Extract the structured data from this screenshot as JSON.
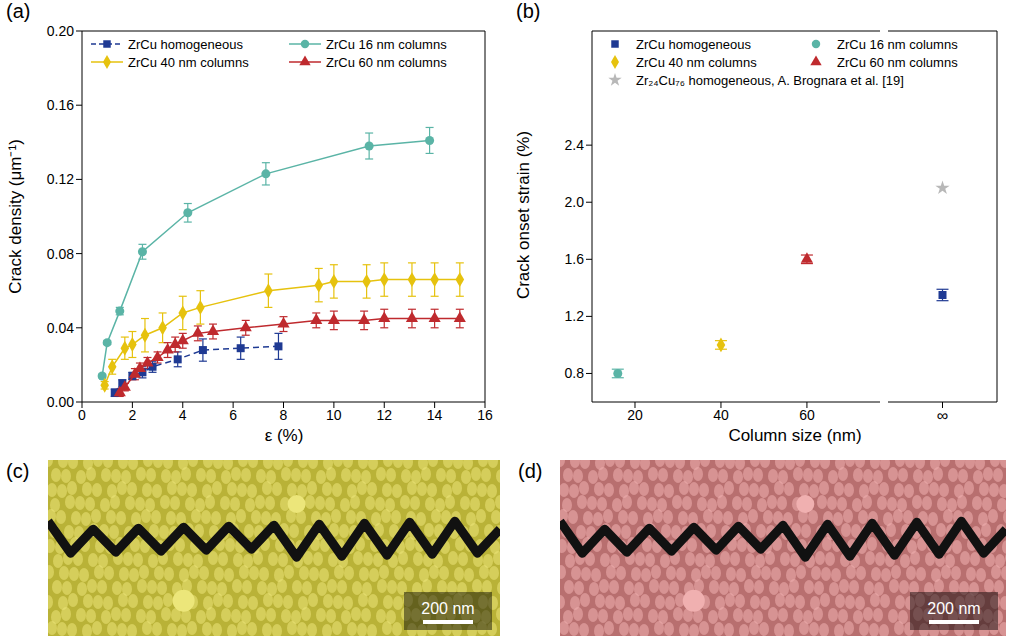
{
  "chart_data": [
    {
      "type": "line",
      "panel_label": "(a)",
      "x_label": "ε (%)",
      "y_label": "Crack density (μm⁻¹)",
      "xlim": [
        0,
        16
      ],
      "xticks": [
        0,
        2,
        4,
        6,
        8,
        10,
        12,
        14,
        16
      ],
      "ylim": [
        0,
        0.2
      ],
      "yticks": [
        {
          "value": 0,
          "label": "0.00"
        },
        0.04,
        0.08,
        0.12,
        0.16,
        {
          "value": 0.2,
          "label": "0.20"
        }
      ],
      "legend": "upper left",
      "series": [
        {
          "name": "ZrCu homogeneous",
          "color": "#1f3a93",
          "marker": "square",
          "line_style": "dashed",
          "x": [
            1.3,
            1.6,
            2.0,
            2.4,
            2.8,
            3.8,
            4.8,
            6.3,
            7.8
          ],
          "values": [
            0.005,
            0.01,
            0.014,
            0.016,
            0.019,
            0.023,
            0.028,
            0.029,
            0.03
          ],
          "errors": [
            0.002,
            0.002,
            0.002,
            0.003,
            0.003,
            0.004,
            0.006,
            0.006,
            0.007
          ]
        },
        {
          "name": "ZrCu 16 nm columns",
          "color": "#5ab4a6",
          "marker": "circle",
          "line_style": "solid",
          "x": [
            0.8,
            1.0,
            1.5,
            2.4,
            4.2,
            7.3,
            11.4,
            13.8
          ],
          "values": [
            0.014,
            0.032,
            0.049,
            0.081,
            0.102,
            0.123,
            0.138,
            0.141
          ],
          "errors": [
            0.001,
            0.001,
            0.002,
            0.004,
            0.005,
            0.006,
            0.007,
            0.007
          ]
        },
        {
          "name": "ZrCu 40 nm columns",
          "color": "#e6c20e",
          "marker": "diamond",
          "line_style": "solid",
          "x": [
            0.9,
            1.2,
            1.7,
            2.0,
            2.5,
            3.2,
            4.0,
            4.7,
            7.4,
            9.4,
            10.0,
            11.3,
            12.0,
            13.1,
            14.0,
            15.0
          ],
          "values": [
            0.009,
            0.019,
            0.029,
            0.031,
            0.036,
            0.04,
            0.048,
            0.051,
            0.06,
            0.063,
            0.065,
            0.065,
            0.066,
            0.066,
            0.066,
            0.066
          ],
          "errors": [
            0.002,
            0.004,
            0.006,
            0.007,
            0.009,
            0.008,
            0.009,
            0.009,
            0.009,
            0.009,
            0.009,
            0.009,
            0.009,
            0.009,
            0.009,
            0.009
          ]
        },
        {
          "name": "ZrCu 60 nm columns",
          "color": "#bf2a2e",
          "marker": "triangle",
          "line_style": "solid",
          "x": [
            1.5,
            1.7,
            2.1,
            2.3,
            2.6,
            3.0,
            3.4,
            3.7,
            4.0,
            4.6,
            5.2,
            6.5,
            8.0,
            9.3,
            10.0,
            11.2,
            12.0,
            13.1,
            14.0,
            15.0
          ],
          "values": [
            0.005,
            0.008,
            0.015,
            0.018,
            0.021,
            0.024,
            0.028,
            0.031,
            0.033,
            0.037,
            0.038,
            0.04,
            0.042,
            0.044,
            0.044,
            0.044,
            0.045,
            0.045,
            0.045,
            0.045
          ],
          "errors": [
            0.002,
            0.002,
            0.003,
            0.003,
            0.003,
            0.003,
            0.004,
            0.004,
            0.004,
            0.004,
            0.004,
            0.004,
            0.004,
            0.004,
            0.005,
            0.005,
            0.005,
            0.005,
            0.005,
            0.005
          ]
        }
      ]
    },
    {
      "type": "scatter",
      "panel_label": "(b)",
      "x_label": "Column size (nm)",
      "y_label": "Crack onset strain (%)",
      "xlim": [
        10,
        77
      ],
      "xticks": [
        20,
        40,
        60,
        "∞"
      ],
      "ylim": [
        0.6,
        3.2
      ],
      "yticks": [
        0.8,
        1.2,
        1.6,
        {
          "value": 2.0,
          "label": "2.0"
        },
        2.4
      ],
      "legend": "upper left",
      "series": [
        {
          "name": "ZrCu homogeneous",
          "color": "#1f3a93",
          "marker": "square",
          "x": [
            "∞"
          ],
          "values": [
            1.35
          ],
          "errors": [
            0.04
          ]
        },
        {
          "name": "ZrCu 16 nm columns",
          "color": "#5ab4a6",
          "marker": "circle",
          "x": [
            16
          ],
          "values": [
            0.8
          ],
          "errors": [
            0.03
          ]
        },
        {
          "name": "ZrCu 40 nm columns",
          "color": "#e6c20e",
          "marker": "diamond",
          "x": [
            40
          ],
          "values": [
            1.0
          ],
          "errors": [
            0.03
          ]
        },
        {
          "name": "ZrCu 60 nm columns",
          "color": "#bf2a2e",
          "marker": "triangle",
          "x": [
            60
          ],
          "values": [
            1.6
          ],
          "errors": [
            0.03
          ]
        },
        {
          "name": "Zr₂₄Cu₇₆ homogeneous, A. Brognara et al. [19]",
          "color": "#b8b8b8",
          "marker": "star",
          "x": [
            "∞"
          ],
          "values": [
            2.1
          ]
        }
      ]
    }
  ],
  "images": [
    {
      "panel_label": "(c)",
      "scale_bar": "200 nm",
      "color": "#b9b237"
    },
    {
      "panel_label": "(d)",
      "scale_bar": "200 nm",
      "color": "#b86f6f"
    }
  ]
}
